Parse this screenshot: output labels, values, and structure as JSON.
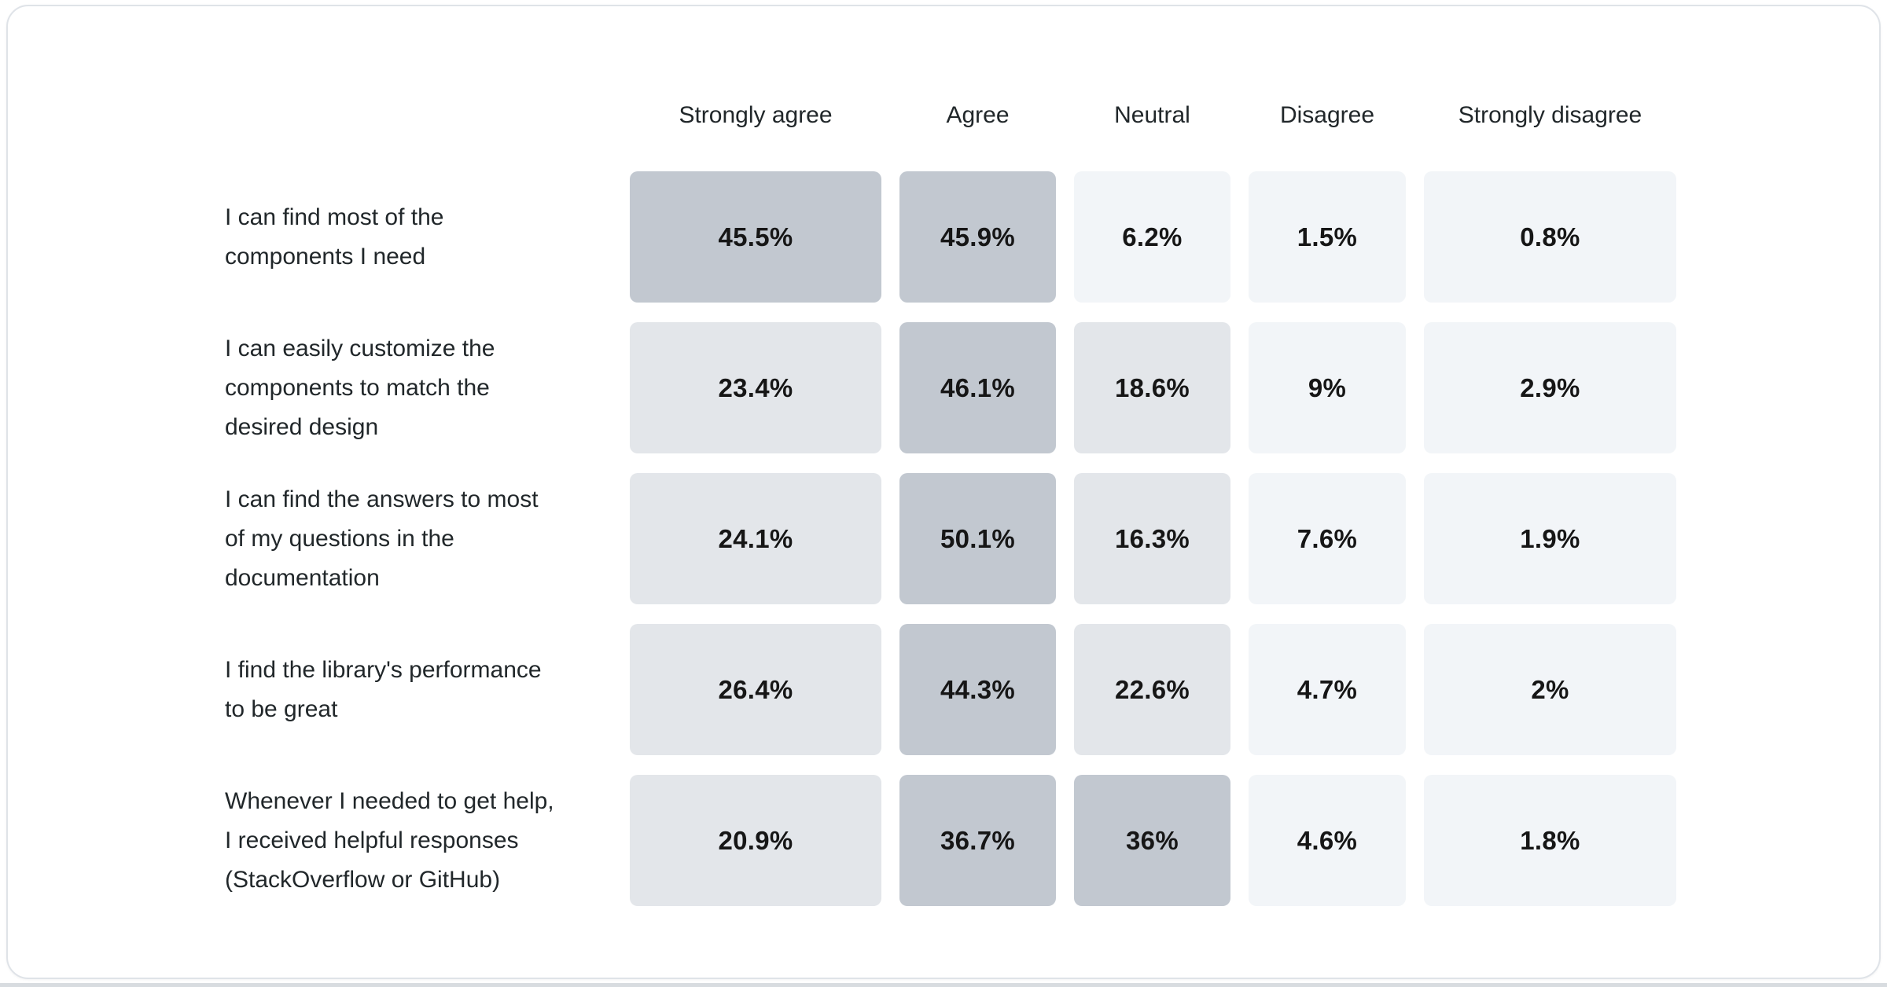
{
  "page": {
    "background": "#ffffff",
    "card_border_color": "#dfe3e8",
    "bottom_bar_color": "#d8dce0"
  },
  "chart_data": {
    "type": "heatmap",
    "title": "",
    "legend_position": "none",
    "columns": [
      "Strongly agree",
      "Agree",
      "Neutral",
      "Disagree",
      "Strongly disagree"
    ],
    "rows": [
      {
        "label_lines": [
          "I can find most of the",
          "components I need"
        ],
        "label": "I can find most of the components I need",
        "values": [
          "45.5%",
          "45.9%",
          "6.2%",
          "1.5%",
          "0.8%"
        ]
      },
      {
        "label_lines": [
          "I can easily customize the",
          "components to match the",
          "desired design"
        ],
        "label": "I can easily customize the components to match the desired design",
        "values": [
          "23.4%",
          "46.1%",
          "18.6%",
          "9%",
          "2.9%"
        ]
      },
      {
        "label_lines": [
          "I can find the answers to most",
          "of my questions in the",
          "documentation"
        ],
        "label": "I can find the answers to most of my questions in the documentation",
        "values": [
          "24.1%",
          "50.1%",
          "16.3%",
          "7.6%",
          "1.9%"
        ]
      },
      {
        "label_lines": [
          "I find the library's performance",
          "to be great"
        ],
        "label": "I find the library's performance to be great",
        "values": [
          "26.4%",
          "44.3%",
          "22.6%",
          "4.7%",
          "2%"
        ]
      },
      {
        "label_lines": [
          "Whenever I needed to get help,",
          "I received helpful responses",
          "(StackOverflow or GitHub)"
        ],
        "label": "Whenever I needed to get help, I received helpful responses (StackOverflow or GitHub)",
        "values": [
          "20.9%",
          "36.7%",
          "36%",
          "4.6%",
          "1.8%"
        ]
      }
    ],
    "color_scale": {
      "high_color": "#c2c8d0",
      "mid_color": "#e3e6ea",
      "low_color": "#f2f5f8",
      "high_min": 30,
      "mid_min": 10,
      "text_color": "#161616",
      "label_color": "#21272a"
    }
  }
}
